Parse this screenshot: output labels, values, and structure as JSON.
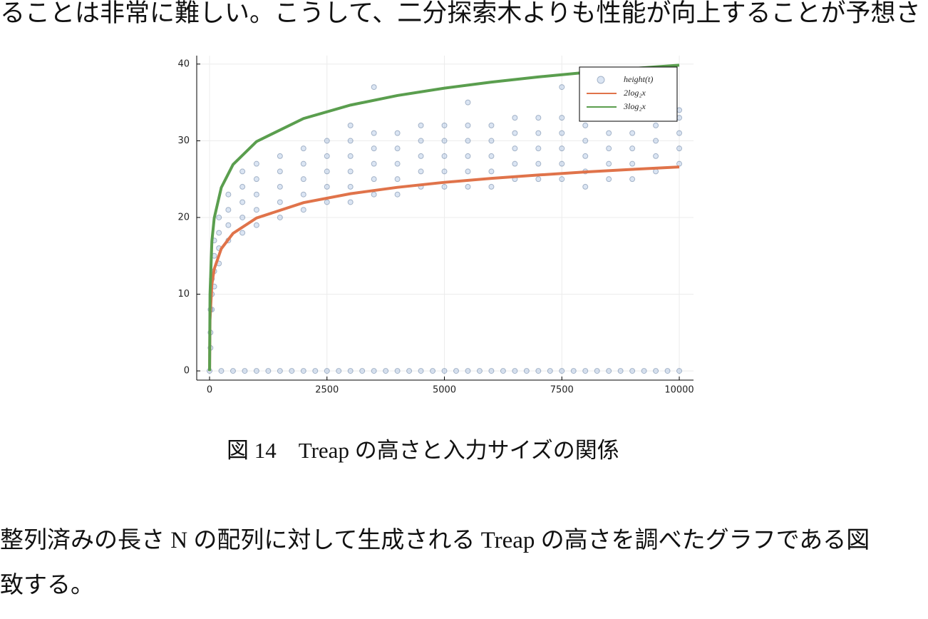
{
  "top_text": "ることは非常に難しい。こうして、二分探索木よりも性能が向上することが予想さ",
  "chart_data": {
    "type": "scatter",
    "legend": "top right",
    "grid": true,
    "xlim": [
      -273,
      10303
    ],
    "ylim": [
      -1.2,
      41.1
    ],
    "xticks": [
      0,
      2500,
      5000,
      7500,
      10000
    ],
    "yticks": [
      0,
      10,
      20,
      30,
      40
    ],
    "series": [
      {
        "name": "height(t)",
        "type": "scatter",
        "color": "#4a7fc1",
        "x": [
          20,
          20,
          20,
          50,
          50,
          50,
          100,
          100,
          100,
          100,
          200,
          200,
          200,
          200,
          400,
          400,
          400,
          400,
          700,
          700,
          700,
          700,
          700,
          1000,
          1000,
          1000,
          1000,
          1000,
          1500,
          1500,
          1500,
          1500,
          1500,
          2000,
          2000,
          2000,
          2000,
          2000,
          2500,
          2500,
          2500,
          2500,
          2500,
          3000,
          3000,
          3000,
          3000,
          3000,
          3000,
          3500,
          3500,
          3500,
          3500,
          3500,
          3500,
          4000,
          4000,
          4000,
          4000,
          4000,
          4500,
          4500,
          4500,
          4500,
          4500,
          5000,
          5000,
          5000,
          5000,
          5000,
          5500,
          5500,
          5500,
          5500,
          5500,
          5500,
          6000,
          6000,
          6000,
          6000,
          6000,
          6500,
          6500,
          6500,
          6500,
          6500,
          7000,
          7000,
          7000,
          7000,
          7000,
          7500,
          7500,
          7500,
          7500,
          7500,
          7500,
          8000,
          8000,
          8000,
          8000,
          8000,
          8500,
          8500,
          8500,
          8500,
          8500,
          9000,
          9000,
          9000,
          9000,
          9000,
          9500,
          9500,
          9500,
          9500,
          9500,
          10000,
          10000,
          10000,
          10000,
          10000,
          0,
          250,
          500,
          750,
          1000,
          1250,
          1500,
          1750,
          2000,
          2250,
          2500,
          2750,
          3000,
          3250,
          3500,
          3750,
          4000,
          4250,
          4500,
          4750,
          5000,
          5250,
          5500,
          5750,
          6000,
          6250,
          6500,
          6750,
          7000,
          7250,
          7500,
          7750,
          8000,
          8250,
          8500,
          8750,
          9000,
          9250,
          9500,
          9750,
          10000
        ],
        "values": [
          3,
          5,
          8,
          8,
          10,
          12,
          11,
          13,
          15,
          17,
          14,
          16,
          18,
          20,
          17,
          19,
          21,
          23,
          18,
          20,
          22,
          24,
          26,
          19,
          21,
          23,
          25,
          27,
          20,
          22,
          24,
          26,
          28,
          21,
          23,
          25,
          27,
          29,
          22,
          24,
          26,
          28,
          30,
          22,
          24,
          26,
          28,
          30,
          32,
          23,
          25,
          27,
          29,
          31,
          37,
          23,
          25,
          27,
          29,
          31,
          24,
          26,
          28,
          30,
          32,
          24,
          26,
          28,
          30,
          32,
          24,
          26,
          28,
          30,
          32,
          35,
          24,
          26,
          28,
          30,
          32,
          25,
          27,
          29,
          31,
          33,
          25,
          27,
          29,
          31,
          33,
          25,
          27,
          29,
          31,
          33,
          37,
          24,
          26,
          28,
          30,
          32,
          25,
          27,
          29,
          31,
          33,
          25,
          27,
          29,
          31,
          33,
          26,
          28,
          30,
          32,
          34,
          27,
          29,
          31,
          33,
          34,
          0,
          0,
          0,
          0,
          0,
          0,
          0,
          0,
          0,
          0,
          0,
          0,
          0,
          0,
          0,
          0,
          0,
          0,
          0,
          0,
          0,
          0,
          0,
          0,
          0,
          0,
          0,
          0,
          0,
          0,
          0,
          0,
          0,
          0,
          0,
          0,
          0,
          0,
          0,
          0,
          0
        ]
      },
      {
        "name": "2log₂x",
        "type": "line",
        "color": "#e0734a",
        "x": [
          1,
          10,
          50,
          100,
          250,
          500,
          1000,
          2000,
          3000,
          4000,
          5000,
          6000,
          7000,
          8000,
          9000,
          10000
        ],
        "values": [
          0,
          6.64,
          11.29,
          13.29,
          15.93,
          17.93,
          19.93,
          21.93,
          23.1,
          23.93,
          24.58,
          25.1,
          25.54,
          25.93,
          26.27,
          26.58
        ]
      },
      {
        "name": "3log₂x",
        "type": "line",
        "color": "#5a9e4e",
        "x": [
          1,
          10,
          50,
          100,
          250,
          500,
          1000,
          2000,
          3000,
          4000,
          5000,
          6000,
          7000,
          8000,
          9000,
          10000
        ],
        "values": [
          0,
          9.97,
          16.93,
          19.93,
          23.9,
          26.9,
          29.9,
          32.9,
          34.65,
          35.9,
          36.86,
          37.65,
          38.32,
          38.9,
          39.41,
          39.86
        ]
      }
    ]
  },
  "caption": "図 14　Treap の高さと入力サイズの関係",
  "body": [
    "整列済みの長さ N の配列に対して生成される Treap の高さを調べたグラフである図",
    "致する。"
  ]
}
